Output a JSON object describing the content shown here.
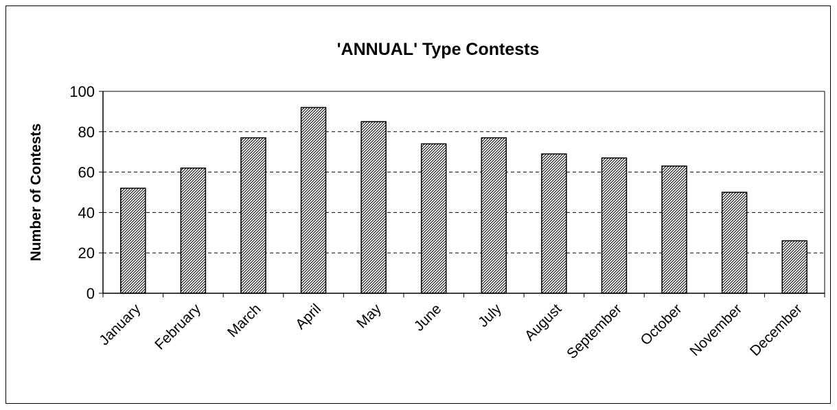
{
  "chart_data": {
    "type": "bar",
    "title": "'ANNUAL' Type Contests",
    "xlabel": "",
    "ylabel": "Number of Contests",
    "categories": [
      "January",
      "February",
      "March",
      "April",
      "May",
      "June",
      "July",
      "August",
      "September",
      "October",
      "November",
      "December"
    ],
    "values": [
      52,
      62,
      77,
      92,
      85,
      74,
      77,
      69,
      67,
      63,
      50,
      26
    ],
    "ylim": [
      0,
      100
    ],
    "yticks": [
      "0",
      "20",
      "40",
      "60",
      "80",
      "100"
    ],
    "grid": "horizontal dashed",
    "legend": "none",
    "bar_fill": "diagonal hatch",
    "colors": {
      "bar_stroke": "#000000",
      "hatch": "#000000",
      "grid": "#000000",
      "background": "#ffffff"
    }
  }
}
